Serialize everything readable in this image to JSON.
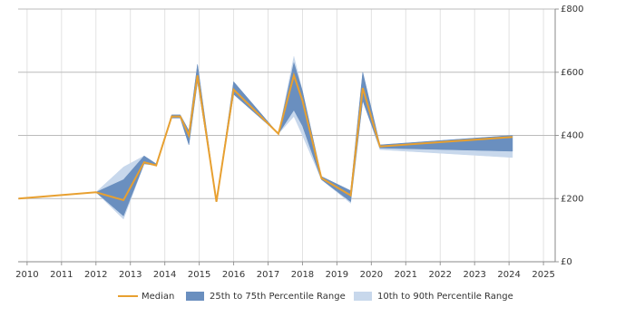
{
  "chart_data": {
    "type": "line",
    "x": [
      2009.75,
      2012.0,
      2012.8,
      2013.4,
      2013.75,
      2014.2,
      2014.45,
      2014.7,
      2014.95,
      2015.5,
      2016.0,
      2017.3,
      2017.75,
      2018.0,
      2018.55,
      2019.4,
      2019.75,
      2020.25,
      2024.1
    ],
    "series": [
      {
        "name": "Median",
        "color": "#e8a030",
        "values": [
          200,
          220,
          195,
          315,
          305,
          460,
          460,
          400,
          590,
          190,
          545,
          405,
          590,
          510,
          265,
          210,
          550,
          365,
          395
        ]
      },
      {
        "name": "25th to 75th Percentile Range",
        "color": "#6a8fbf",
        "upper": [
          200,
          220,
          260,
          335,
          310,
          465,
          465,
          415,
          625,
          190,
          570,
          405,
          630,
          540,
          270,
          225,
          600,
          370,
          400
        ],
        "lower": [
          200,
          220,
          145,
          310,
          305,
          455,
          455,
          370,
          570,
          190,
          530,
          405,
          480,
          430,
          260,
          190,
          510,
          360,
          350
        ]
      },
      {
        "name": "10th to 90th Percentile Range",
        "color": "#c8d8ec",
        "upper": [
          200,
          220,
          300,
          335,
          310,
          465,
          465,
          415,
          625,
          190,
          570,
          405,
          650,
          540,
          270,
          225,
          600,
          370,
          400
        ],
        "lower": [
          200,
          220,
          135,
          310,
          305,
          455,
          455,
          370,
          570,
          190,
          530,
          405,
          460,
          400,
          260,
          185,
          510,
          355,
          330
        ]
      }
    ],
    "xlim": [
      2009.74,
      2025.34
    ],
    "xticks": [
      2010,
      2011,
      2012,
      2013,
      2014,
      2015,
      2016,
      2017,
      2018,
      2019,
      2020,
      2021,
      2022,
      2023,
      2024,
      2025
    ],
    "ylim": [
      0,
      800
    ],
    "yticks": [
      {
        "value": 0,
        "label": "£0"
      },
      {
        "value": 200,
        "label": "£200"
      },
      {
        "value": 400,
        "label": "£400"
      },
      {
        "value": 600,
        "label": "£600"
      },
      {
        "value": 800,
        "label": "£800"
      }
    ],
    "grid": true,
    "legend": "bottom"
  }
}
